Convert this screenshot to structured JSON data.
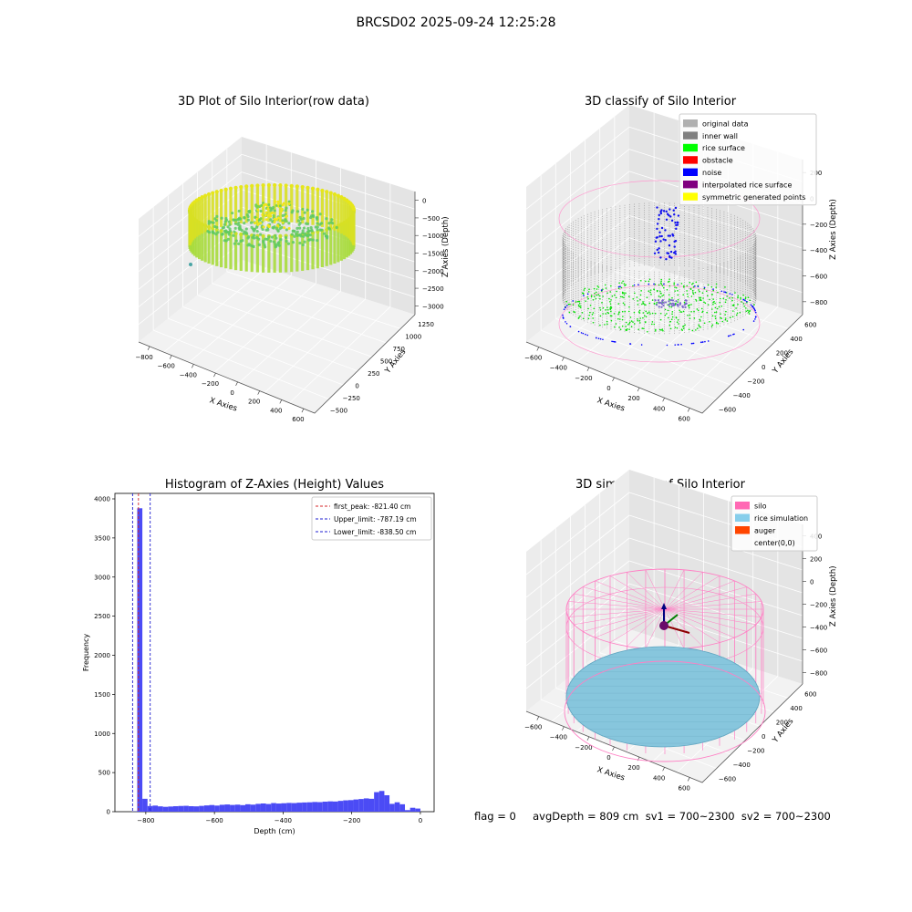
{
  "figure_title": "BRCSD02 2025-09-24 12:25:28",
  "status_line": "flag = 0     avgDepth = 809 cm  sv1 = 700~2300  sv2 = 700~2300",
  "chart_data": [
    {
      "type": "scatter",
      "subtype": "3d",
      "title": "3D Plot of Silo Interior(row data)",
      "xlabel": "X Axies",
      "ylabel": "Y Axies",
      "zlabel": "Z Axies (Depth)",
      "xticks": [
        "−800",
        "−600",
        "−400",
        "−200",
        "0",
        "200",
        "400",
        "600"
      ],
      "yticks": [
        "−500",
        "−250",
        "0",
        "250",
        "500",
        "750",
        "1000",
        "1250"
      ],
      "zticks": [
        "0",
        "−500",
        "−1000",
        "−1500",
        "−2000",
        "−2500",
        "−3000"
      ],
      "xlim": [
        -900,
        650
      ],
      "ylim": [
        -600,
        1300
      ],
      "zlim": [
        -3300,
        200
      ],
      "colormap": "viridis-yellow",
      "description_points": "cylindrical wall ring of points radius ~370 around center, depth -500 to -2300",
      "grid": true
    },
    {
      "type": "scatter",
      "subtype": "3d",
      "title": "3D classify of Silo Interior",
      "xlabel": "X Axies",
      "ylabel": "Y Axies",
      "zlabel": "Z Axies (Depth)",
      "xticks": [
        "−600",
        "−400",
        "−200",
        "0",
        "200",
        "400",
        "600"
      ],
      "yticks": [
        "−600",
        "−400",
        "−200",
        "0",
        "200",
        "400",
        "600"
      ],
      "zticks": [
        "200",
        "0",
        "−200",
        "−400",
        "−600",
        "−800"
      ],
      "xlim": [
        -650,
        650
      ],
      "ylim": [
        -650,
        650
      ],
      "zlim": [
        -900,
        300
      ],
      "legend_position": "top-right",
      "legend": [
        {
          "label": "original data",
          "color": "#b0b0b0"
        },
        {
          "label": "inner wall",
          "color": "#808080"
        },
        {
          "label": "rice surface",
          "color": "#00ff00"
        },
        {
          "label": "obstacle",
          "color": "#ff0000"
        },
        {
          "label": "noise",
          "color": "#0000ff"
        },
        {
          "label": "interpolated rice surface",
          "color": "#800080"
        },
        {
          "label": "symmetric generated points",
          "color": "#ffff00"
        }
      ],
      "grid": true
    },
    {
      "type": "bar",
      "subtype": "histogram",
      "title": "Histogram of Z-Axies (Height) Values",
      "xlabel": "Depth (cm)",
      "ylabel": "Frequency",
      "xlim": [
        -890,
        40
      ],
      "ylim": [
        0,
        4070
      ],
      "xticks": [
        -800,
        -600,
        -400,
        -200,
        0
      ],
      "xtick_labels": [
        "−800",
        "−600",
        "−400",
        "−200",
        "0"
      ],
      "yticks": [
        0,
        500,
        1000,
        1500,
        2000,
        2500,
        3000,
        3500,
        4000
      ],
      "bin_width": 15,
      "bins": [
        {
          "x": -840,
          "v": 3
        },
        {
          "x": -825,
          "v": 3880
        },
        {
          "x": -810,
          "v": 165
        },
        {
          "x": -795,
          "v": 72
        },
        {
          "x": -780,
          "v": 78
        },
        {
          "x": -765,
          "v": 68
        },
        {
          "x": -750,
          "v": 62
        },
        {
          "x": -735,
          "v": 66
        },
        {
          "x": -720,
          "v": 70
        },
        {
          "x": -705,
          "v": 73
        },
        {
          "x": -690,
          "v": 75
        },
        {
          "x": -675,
          "v": 70
        },
        {
          "x": -660,
          "v": 68
        },
        {
          "x": -645,
          "v": 74
        },
        {
          "x": -630,
          "v": 80
        },
        {
          "x": -615,
          "v": 85
        },
        {
          "x": -600,
          "v": 78
        },
        {
          "x": -585,
          "v": 88
        },
        {
          "x": -570,
          "v": 92
        },
        {
          "x": -555,
          "v": 86
        },
        {
          "x": -540,
          "v": 90
        },
        {
          "x": -525,
          "v": 84
        },
        {
          "x": -510,
          "v": 95
        },
        {
          "x": -495,
          "v": 90
        },
        {
          "x": -480,
          "v": 100
        },
        {
          "x": -465,
          "v": 105
        },
        {
          "x": -450,
          "v": 98
        },
        {
          "x": -435,
          "v": 110
        },
        {
          "x": -420,
          "v": 104
        },
        {
          "x": -405,
          "v": 108
        },
        {
          "x": -390,
          "v": 112
        },
        {
          "x": -375,
          "v": 110
        },
        {
          "x": -360,
          "v": 115
        },
        {
          "x": -345,
          "v": 118
        },
        {
          "x": -330,
          "v": 120
        },
        {
          "x": -315,
          "v": 124
        },
        {
          "x": -300,
          "v": 122
        },
        {
          "x": -285,
          "v": 128
        },
        {
          "x": -270,
          "v": 132
        },
        {
          "x": -255,
          "v": 130
        },
        {
          "x": -240,
          "v": 138
        },
        {
          "x": -225,
          "v": 145
        },
        {
          "x": -210,
          "v": 148
        },
        {
          "x": -195,
          "v": 156
        },
        {
          "x": -180,
          "v": 162
        },
        {
          "x": -165,
          "v": 170
        },
        {
          "x": -150,
          "v": 165
        },
        {
          "x": -135,
          "v": 250
        },
        {
          "x": -120,
          "v": 265
        },
        {
          "x": -105,
          "v": 210
        },
        {
          "x": -90,
          "v": 100
        },
        {
          "x": -75,
          "v": 120
        },
        {
          "x": -60,
          "v": 95
        },
        {
          "x": -45,
          "v": 20
        },
        {
          "x": -30,
          "v": 50
        },
        {
          "x": -15,
          "v": 40
        }
      ],
      "bar_color": "#4b4bf5",
      "vlines": [
        {
          "label": "first_peak: -821.40 cm",
          "x": -821.4,
          "color": "#d62728"
        },
        {
          "label": "Upper_limit: -787.19 cm",
          "x": -787.19,
          "color": "#1f1fd0"
        },
        {
          "label": "Lower_limit: -838.50 cm",
          "x": -838.5,
          "color": "#1f1fd0"
        }
      ],
      "legend_position": "top-right",
      "grid": false
    },
    {
      "type": "scatter",
      "subtype": "3d",
      "title": "3D simulation of Silo Interior",
      "xlabel": "X Axies",
      "ylabel": "Y Axies",
      "zlabel": "Z Axies (Depth)",
      "xticks": [
        "−600",
        "−400",
        "−200",
        "0",
        "200",
        "400",
        "600"
      ],
      "yticks": [
        "−600",
        "−400",
        "−200",
        "0",
        "200",
        "400",
        "600"
      ],
      "zticks": [
        "400",
        "200",
        "0",
        "−200",
        "−400",
        "−600",
        "−800"
      ],
      "xlim": [
        -650,
        650
      ],
      "ylim": [
        -650,
        650
      ],
      "zlim": [
        -900,
        450
      ],
      "legend_position": "top-right",
      "legend": [
        {
          "label": "silo",
          "color": "#ff69b4"
        },
        {
          "label": "rice simulation",
          "color": "#87ceeb"
        },
        {
          "label": "auger",
          "color": "#ff4500"
        },
        {
          "label": "center(0,0)",
          "color": ""
        }
      ],
      "grid": true
    }
  ]
}
